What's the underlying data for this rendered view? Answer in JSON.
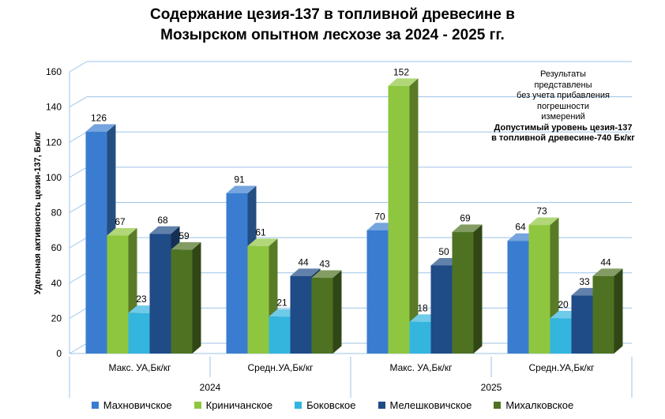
{
  "chart_data": {
    "type": "bar",
    "title_lines": [
      "Содержание цезия-137 в топливной древесине в",
      "Мозырском опытном лесхозе за 2024 - 2025 гг."
    ],
    "ylabel": "Удельная активность цезия-137, Бк/кг",
    "ylim": [
      0,
      160
    ],
    "yticks": [
      "0",
      "20",
      "40",
      "60",
      "80",
      "100",
      "120",
      "140",
      "160"
    ],
    "grid": true,
    "legend_position": "bottom",
    "groups": [
      {
        "label": "2024",
        "categories": [
          "Макс. УА,Бк/кг",
          "Средн.УА,Бк/кг"
        ]
      },
      {
        "label": "2025",
        "categories": [
          "Макс. УА,Бк/кг",
          "Средн.УА,Бк/кг"
        ]
      }
    ],
    "series": [
      {
        "name": "Махновичское",
        "color": "#3a7dd0",
        "values": [
          126,
          91,
          70,
          64
        ]
      },
      {
        "name": "Криничанское",
        "color": "#8fc63f",
        "values": [
          67,
          61,
          152,
          73
        ]
      },
      {
        "name": "Боковское",
        "color": "#33b5de",
        "values": [
          23,
          21,
          18,
          20
        ]
      },
      {
        "name": "Мелешковичское",
        "color": "#1f4b86",
        "values": [
          68,
          44,
          50,
          33
        ]
      },
      {
        "name": "Михалковское",
        "color": "#4e7222",
        "values": [
          59,
          43,
          69,
          44
        ]
      }
    ],
    "note": {
      "lines": [
        "Результаты",
        "представлены",
        "без учета прибавления",
        "погрешности",
        "измерений"
      ],
      "bold_lines": [
        "Допустимый уровень цезия-137",
        "в топливной древесине-740 Бк/кг"
      ]
    }
  }
}
